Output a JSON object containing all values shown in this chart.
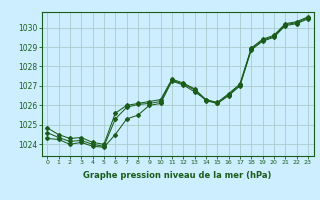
{
  "title": "Graphe pression niveau de la mer (hPa)",
  "bg_color": "#cceeff",
  "grid_color": "#aacccc",
  "line_color": "#1a5c1a",
  "x_labels": [
    "0",
    "1",
    "2",
    "3",
    "4",
    "5",
    "6",
    "7",
    "8",
    "9",
    "10",
    "11",
    "12",
    "13",
    "14",
    "15",
    "16",
    "17",
    "18",
    "19",
    "20",
    "21",
    "22",
    "23"
  ],
  "ylim": [
    1023.4,
    1030.8
  ],
  "yticks": [
    1024,
    1025,
    1026,
    1027,
    1028,
    1029,
    1030
  ],
  "series1": [
    1024.3,
    1024.25,
    1024.0,
    1024.1,
    1023.9,
    1023.85,
    1024.5,
    1025.3,
    1025.5,
    1026.0,
    1026.1,
    1027.25,
    1027.05,
    1026.7,
    1026.3,
    1026.1,
    1026.5,
    1027.0,
    1028.85,
    1029.3,
    1029.5,
    1030.1,
    1030.2,
    1030.45
  ],
  "series2": [
    1024.6,
    1024.35,
    1024.15,
    1024.2,
    1024.0,
    1023.9,
    1025.3,
    1025.9,
    1026.05,
    1026.1,
    1026.2,
    1027.3,
    1027.1,
    1026.8,
    1026.25,
    1026.1,
    1026.55,
    1027.05,
    1028.9,
    1029.35,
    1029.55,
    1030.15,
    1030.25,
    1030.5
  ],
  "series3": [
    1024.85,
    1024.5,
    1024.3,
    1024.35,
    1024.1,
    1024.0,
    1025.6,
    1026.0,
    1026.1,
    1026.2,
    1026.3,
    1027.35,
    1027.15,
    1026.85,
    1026.3,
    1026.15,
    1026.6,
    1027.1,
    1028.95,
    1029.4,
    1029.6,
    1030.2,
    1030.3,
    1030.55
  ]
}
